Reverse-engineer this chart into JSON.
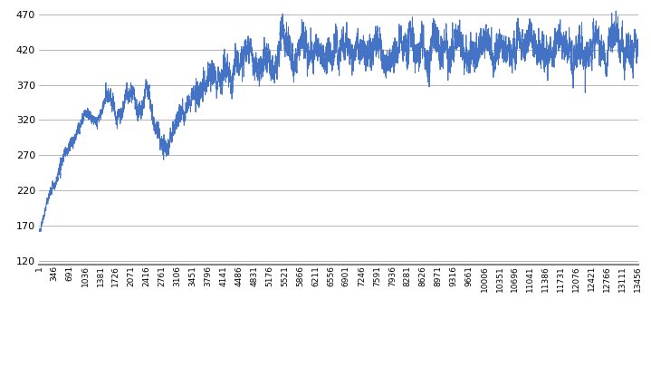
{
  "x_ticks": [
    1,
    346,
    691,
    1036,
    1381,
    1726,
    2071,
    2416,
    2761,
    3106,
    3451,
    3796,
    4141,
    4486,
    4831,
    5176,
    5521,
    5866,
    6211,
    6556,
    6901,
    7246,
    7591,
    7936,
    8281,
    8626,
    8971,
    9316,
    9661,
    10006,
    10351,
    10696,
    11041,
    11386,
    11731,
    12076,
    12421,
    12766,
    13111,
    13456
  ],
  "y_ticks": [
    120,
    170,
    220,
    270,
    320,
    370,
    420,
    470
  ],
  "ylim": [
    115,
    480
  ],
  "xlim": [
    1,
    13456
  ],
  "line_color": "#4472C4",
  "background_color": "#FFFFFF",
  "grid_color": "#AAAAAA",
  "linewidth": 0.7,
  "seed": 123
}
